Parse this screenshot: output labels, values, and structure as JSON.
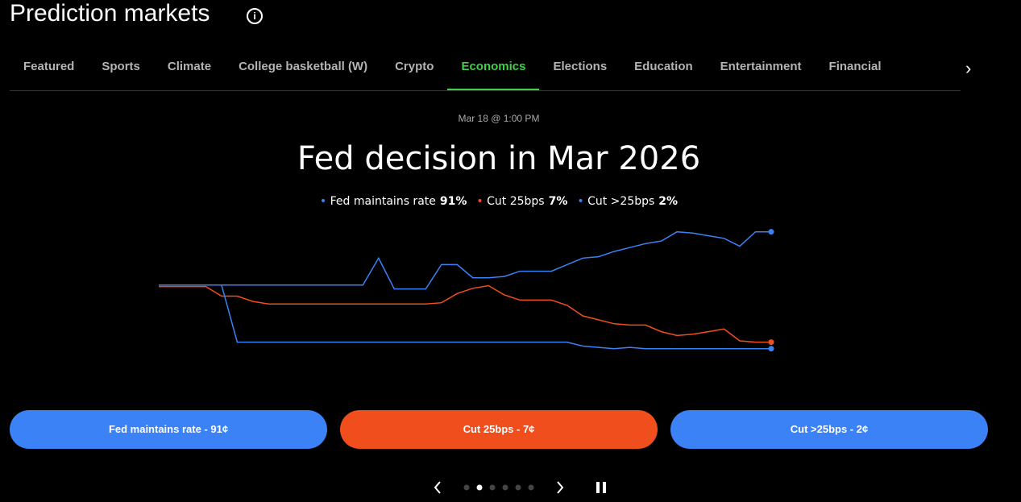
{
  "header": {
    "title": "Prediction markets"
  },
  "nav": {
    "tabs": [
      "Featured",
      "Sports",
      "Climate",
      "College basketball (W)",
      "Crypto",
      "Economics",
      "Elections",
      "Education",
      "Entertainment",
      "Financial"
    ],
    "active": 5
  },
  "market": {
    "date": "Mar 18 @ 1:00 PM",
    "buttons": [
      "Fed maintains rate - 91¢",
      "Cut 25bps - 7¢",
      "Cut >25bps - 2¢"
    ]
  },
  "chart_data": {
    "type": "line",
    "title": "Fed decision in Mar 2026",
    "ylim": [
      0,
      100
    ],
    "series": [
      {
        "name": "Fed maintains rate",
        "color": "#3b82f6",
        "current": 91,
        "current_label": "91%",
        "values": [
          50.5,
          50.5,
          50.5,
          50.5,
          50.5,
          50.5,
          50.5,
          50.5,
          50.5,
          50.5,
          50.5,
          50.5,
          50.5,
          50.5,
          71,
          47.5,
          47.5,
          47.5,
          66,
          66,
          56,
          56,
          57,
          61,
          61,
          61,
          66,
          71,
          72,
          76,
          79,
          82,
          84,
          91,
          90,
          88,
          86,
          80,
          91,
          91
        ]
      },
      {
        "name": "Cut 25bps",
        "color": "#f04e1d",
        "current": 7,
        "current_label": "7%",
        "values": [
          49.3,
          49.3,
          49.3,
          49.3,
          42,
          42,
          38,
          36,
          36,
          36,
          36,
          36,
          36,
          36,
          36,
          36,
          36,
          36,
          37,
          44,
          48,
          50,
          43,
          39,
          39,
          39,
          35,
          27,
          24,
          21,
          20,
          20,
          15,
          12,
          13,
          15,
          17,
          8,
          7,
          7
        ]
      },
      {
        "name": "Cut >25bps",
        "color": "#3b82f6",
        "current": 2,
        "current_label": "2%",
        "values": [
          50.5,
          50.5,
          50.5,
          50.5,
          50.5,
          7,
          7,
          7,
          7,
          7,
          7,
          7,
          7,
          7,
          7,
          7,
          7,
          7,
          7,
          7,
          7,
          7,
          7,
          7,
          7,
          7,
          7,
          4,
          3,
          2,
          3,
          2,
          2,
          2,
          2,
          2,
          2,
          2,
          2,
          2
        ]
      }
    ]
  }
}
